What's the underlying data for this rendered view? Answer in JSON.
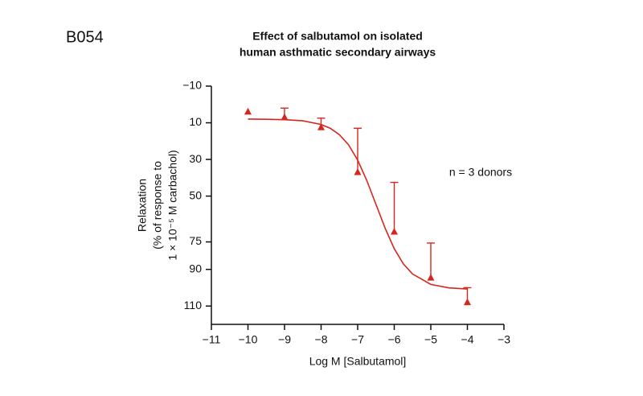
{
  "figure_id": "B054",
  "chart_data": {
    "type": "line",
    "title": [
      "Effect of salbutamol on isolated",
      "human asthmatic secondary airways"
    ],
    "x_label": "Log M [Salbutamol]",
    "y_label": [
      "Relaxation",
      "(% of response to",
      "1 × 10⁻⁵ M carbachol)"
    ],
    "annotation": "n = 3 donors",
    "xlim": [
      -11,
      -3
    ],
    "xticks": [
      {
        "value": -11,
        "label": "−11"
      },
      {
        "value": -10,
        "label": "−10"
      },
      {
        "value": -9,
        "label": "−9"
      },
      {
        "value": -8,
        "label": "−8"
      },
      {
        "value": -7,
        "label": "−7"
      },
      {
        "value": -6,
        "label": "−6"
      },
      {
        "value": -5,
        "label": "−5"
      },
      {
        "value": -4,
        "label": "−4"
      },
      {
        "value": -3,
        "label": "−3"
      }
    ],
    "ylim": [
      -10,
      120
    ],
    "y_inverted": true,
    "yticks": [
      {
        "value": -10,
        "label": "−10"
      },
      10,
      30,
      50,
      75,
      90,
      110
    ],
    "color": "#d7261e",
    "points": {
      "x": [
        -10,
        -9,
        -8,
        -7,
        -6,
        -5,
        -4
      ],
      "values": [
        4,
        7,
        12.5,
        37,
        69.5,
        94.6,
        108
      ],
      "errors": [
        null,
        5,
        5,
        24,
        27,
        19,
        8
      ]
    },
    "fit": {
      "x": [
        -10,
        -9.5,
        -9,
        -8.5,
        -8,
        -7.75,
        -7.5,
        -7.25,
        -7,
        -6.75,
        -6.5,
        -6.25,
        -6,
        -5.75,
        -5.5,
        -5,
        -4.5,
        -4
      ],
      "values": [
        8.0,
        8.1,
        8.3,
        8.9,
        10.9,
        13.0,
        16.5,
        22.0,
        30.4,
        41.5,
        54.5,
        67.5,
        78.7,
        87.0,
        92.5,
        98.2,
        100.1,
        100.7
      ]
    }
  }
}
